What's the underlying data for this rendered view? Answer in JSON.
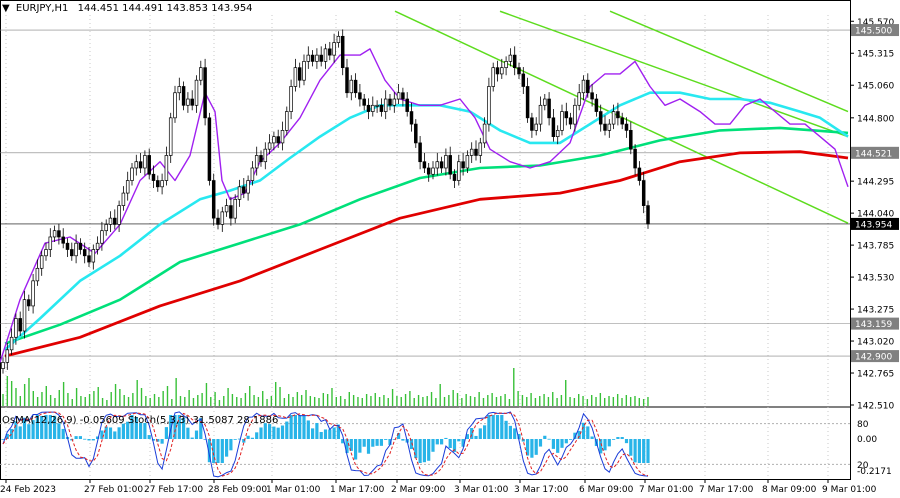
{
  "header": {
    "symbol": "EURJPY,H1",
    "ohlc": "144.451 144.491 143.853 143.954"
  },
  "indicator": {
    "label": "OsMA(12,26,9) -0.05609  Stoch(5,3,3) 31.5087 28.1886",
    "levels": [
      {
        "label": "80",
        "value": 80
      },
      {
        "label": "20",
        "value": 20
      }
    ],
    "right_labels": [
      "0.00",
      "-0.2171"
    ]
  },
  "colors": {
    "candle": "#000000",
    "ema_fast": "#a020f0",
    "ema_mid": "#28e8f0",
    "ema_slow": "#00e07a",
    "ema_long": "#e00000",
    "channel": "#5ddc1e",
    "volume": "#38c038",
    "osma": "#28b4e8",
    "stoch_main": "#1a3cd8",
    "stoch_signal": "#e02020"
  },
  "chart_data": {
    "type": "line",
    "ylim": [
      142.51,
      145.62
    ],
    "y_ticks": [
      145.57,
      145.315,
      145.06,
      144.8,
      144.295,
      144.04,
      143.785,
      143.53,
      143.275,
      143.02,
      142.765,
      142.51
    ],
    "x_labels": [
      "24 Feb 2023",
      "27 Feb 01:00",
      "27 Feb 17:00",
      "28 Feb 09:00",
      "1 Mar 01:00",
      "1 Mar 17:00",
      "2 Mar 09:00",
      "3 Mar 01:00",
      "3 Mar 17:00",
      "6 Mar 09:00",
      "7 Mar 01:00",
      "7 Mar 17:00",
      "8 Mar 09:00",
      "9 Mar 01:00"
    ],
    "price_levels": [
      {
        "label": "145.500",
        "value": 145.5,
        "color": "#808080"
      },
      {
        "label": "144.521",
        "value": 144.521,
        "color": "#808080"
      },
      {
        "label": "143.954",
        "value": 143.954,
        "color": "#000000"
      },
      {
        "label": "143.159",
        "value": 143.159,
        "color": "#808080"
      },
      {
        "label": "142.900",
        "value": 142.9,
        "color": "#808080"
      }
    ],
    "series": [
      {
        "name": "",
        "role": "ema_fast",
        "color": "#a020f0",
        "x": [
          0,
          20,
          45,
          70,
          95,
          120,
          140,
          160,
          175,
          190,
          205,
          215,
          222,
          230,
          245,
          260,
          280,
          300,
          320,
          340,
          360,
          370,
          385,
          400,
          420,
          440,
          460,
          475,
          490,
          510,
          530,
          550,
          570,
          590,
          605,
          620,
          635,
          650,
          665,
          680,
          700,
          715,
          730,
          745,
          760,
          775,
          790,
          805,
          820,
          835,
          848
        ],
        "y": [
          142.85,
          143.35,
          143.8,
          143.85,
          143.72,
          143.95,
          144.3,
          144.45,
          144.3,
          144.5,
          145.0,
          144.85,
          144.3,
          144.15,
          144.2,
          144.45,
          144.6,
          144.8,
          145.1,
          145.3,
          145.3,
          145.35,
          145.1,
          144.95,
          144.9,
          144.9,
          144.95,
          144.8,
          144.55,
          144.45,
          144.4,
          144.45,
          144.6,
          145.05,
          145.15,
          145.15,
          145.25,
          145.05,
          144.9,
          144.95,
          144.85,
          144.75,
          144.75,
          144.9,
          144.95,
          144.85,
          144.75,
          144.75,
          144.65,
          144.55,
          144.25
        ]
      },
      {
        "name": "",
        "role": "ema_mid",
        "color": "#28e8f0",
        "x": [
          5,
          40,
          80,
          120,
          160,
          200,
          230,
          260,
          290,
          320,
          350,
          380,
          410,
          440,
          470,
          500,
          530,
          560,
          590,
          620,
          650,
          680,
          710,
          740,
          770,
          800,
          820,
          848
        ],
        "y": [
          142.95,
          143.2,
          143.5,
          143.7,
          143.95,
          144.15,
          144.22,
          144.3,
          144.48,
          144.65,
          144.8,
          144.9,
          144.9,
          144.9,
          144.85,
          144.7,
          144.6,
          144.6,
          144.75,
          144.9,
          145.0,
          145.0,
          144.95,
          144.95,
          144.92,
          144.85,
          144.8,
          144.65
        ]
      },
      {
        "name": "",
        "role": "ema_slow",
        "color": "#00e07a",
        "x": [
          5,
          60,
          120,
          180,
          240,
          300,
          360,
          420,
          480,
          540,
          600,
          660,
          720,
          780,
          848
        ],
        "y": [
          143.0,
          143.15,
          143.35,
          143.65,
          143.8,
          143.95,
          144.15,
          144.32,
          144.4,
          144.42,
          144.5,
          144.62,
          144.7,
          144.72,
          144.68
        ]
      },
      {
        "name": "",
        "role": "ema_long",
        "color": "#e00000",
        "x": [
          5,
          80,
          160,
          240,
          320,
          400,
          480,
          560,
          620,
          680,
          740,
          800,
          848
        ],
        "y": [
          142.9,
          143.05,
          143.3,
          143.5,
          143.75,
          144.0,
          144.15,
          144.2,
          144.3,
          144.45,
          144.52,
          144.53,
          144.48
        ]
      }
    ],
    "channel_lines": [
      {
        "x": [
          395,
          848
        ],
        "y": [
          145.65,
          143.96
        ]
      },
      {
        "x": [
          610,
          848
        ],
        "y": [
          145.65,
          144.85
        ]
      },
      {
        "x": [
          500,
          848
        ],
        "y": [
          145.65,
          144.65
        ]
      }
    ],
    "candles": {
      "x_start": 3,
      "x_step": 4.3,
      "close": [
        142.85,
        142.95,
        143.05,
        143.2,
        143.1,
        143.35,
        143.3,
        143.5,
        143.6,
        143.7,
        143.75,
        143.85,
        143.9,
        143.85,
        143.8,
        143.75,
        143.7,
        143.8,
        143.75,
        143.7,
        143.65,
        143.75,
        143.8,
        143.9,
        143.95,
        144.0,
        143.95,
        144.1,
        144.2,
        144.3,
        144.4,
        144.45,
        144.4,
        144.5,
        144.35,
        144.3,
        144.25,
        144.3,
        144.5,
        144.8,
        145.0,
        145.05,
        144.9,
        144.95,
        144.9,
        145.1,
        145.2,
        144.8,
        144.3,
        144.0,
        143.95,
        144.05,
        144.1,
        144.0,
        144.15,
        144.25,
        144.2,
        144.3,
        144.4,
        144.5,
        144.45,
        144.55,
        144.6,
        144.65,
        144.6,
        144.7,
        144.85,
        145.05,
        145.2,
        145.1,
        145.25,
        145.3,
        145.25,
        145.3,
        145.25,
        145.35,
        145.3,
        145.4,
        145.45,
        145.2,
        145.0,
        145.1,
        145.0,
        144.95,
        144.9,
        144.85,
        144.9,
        144.9,
        144.85,
        144.95,
        144.9,
        144.95,
        145.0,
        144.95,
        144.85,
        144.75,
        144.6,
        144.45,
        144.4,
        144.35,
        144.4,
        144.45,
        144.4,
        144.5,
        144.35,
        144.3,
        144.45,
        144.4,
        144.5,
        144.55,
        144.5,
        144.6,
        144.75,
        145.05,
        145.2,
        145.15,
        145.2,
        145.25,
        145.3,
        145.2,
        145.15,
        145.05,
        144.8,
        144.7,
        144.75,
        144.9,
        144.95,
        144.8,
        144.65,
        144.7,
        144.85,
        144.8,
        144.75,
        144.9,
        145.0,
        145.1,
        145.0,
        144.95,
        144.85,
        144.75,
        144.7,
        144.75,
        144.85,
        144.8,
        144.75,
        144.7,
        144.55,
        144.4,
        144.3,
        144.1,
        143.954
      ]
    },
    "volume": [
      12,
      30,
      25,
      18,
      10,
      22,
      28,
      15,
      9,
      14,
      20,
      11,
      8,
      16,
      24,
      13,
      7,
      18,
      10,
      9,
      12,
      15,
      19,
      8,
      6,
      14,
      22,
      17,
      11,
      9,
      13,
      26,
      18,
      10,
      8,
      12,
      9,
      15,
      20,
      7,
      28,
      10,
      9,
      16,
      8,
      11,
      13,
      23,
      9,
      14,
      6,
      10,
      18,
      12,
      9,
      8,
      13,
      20,
      11,
      9,
      15,
      7,
      10,
      24,
      19,
      8,
      12,
      9,
      14,
      11,
      16,
      10,
      9,
      8,
      13,
      12,
      18,
      9,
      10,
      7,
      14,
      11,
      9,
      8,
      12,
      10,
      13,
      9,
      11,
      8,
      17,
      10,
      9,
      12,
      15,
      8,
      11,
      9,
      10,
      14,
      8,
      22,
      9,
      11,
      16,
      13,
      8,
      12,
      10,
      9,
      14,
      8,
      11,
      13,
      9,
      10,
      12,
      7,
      38,
      15,
      11,
      9,
      13,
      8,
      10,
      12,
      9,
      14,
      8,
      11,
      26,
      9,
      8,
      12,
      10,
      7,
      11,
      9,
      13,
      8,
      10,
      9,
      12,
      8,
      11,
      9,
      10,
      8,
      7,
      9
    ]
  }
}
